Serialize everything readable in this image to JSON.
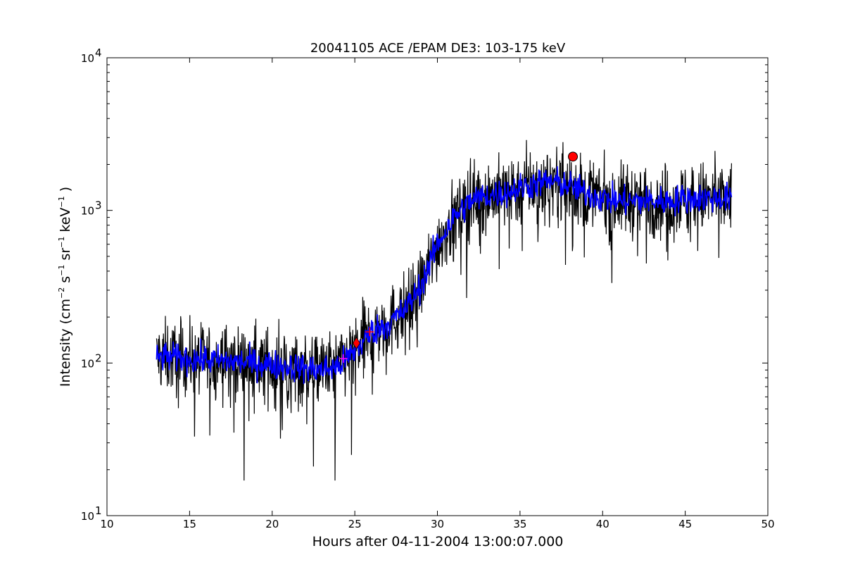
{
  "chart_data": {
    "type": "line",
    "title": "20041105 ACE /EPAM DE3: 103-175 keV",
    "xlabel": "Hours after 04-11-2004 13:00:07.000",
    "ylabel": "Intensity (cm-2 s-1 sr-1 keV-1)",
    "ylabel_parts": {
      "prefix": "Intensity (cm",
      "exp1": "−2",
      "s": "s",
      "exp2": "−1",
      "sr": "sr",
      "exp3": "−1",
      "kev": "keV",
      "exp4": "−1",
      "suffix": ")"
    },
    "xlim": [
      10,
      50
    ],
    "ylim": [
      10,
      10000
    ],
    "yscale": "log",
    "grid": false,
    "x_ticks": [
      10,
      15,
      20,
      25,
      30,
      35,
      40,
      45,
      50
    ],
    "x_tick_labels": [
      "10",
      "15",
      "20",
      "25",
      "30",
      "35",
      "40",
      "45",
      "50"
    ],
    "y_ticks": [
      10,
      100,
      1000,
      10000
    ],
    "y_tick_labels": [
      {
        "base": "10",
        "exp": "1"
      },
      {
        "base": "10",
        "exp": "2"
      },
      {
        "base": "10",
        "exp": "3"
      },
      {
        "base": "10",
        "exp": "4"
      }
    ],
    "series": [
      {
        "color": "#000000",
        "style": "noisy-raw",
        "x_range": [
          13.0,
          47.8
        ],
        "trend": [
          [
            13,
            110
          ],
          [
            16,
            105
          ],
          [
            19,
            100
          ],
          [
            21,
            95
          ],
          [
            23,
            90
          ],
          [
            24,
            95
          ],
          [
            25,
            120
          ],
          [
            26,
            160
          ],
          [
            27,
            180
          ],
          [
            28,
            220
          ],
          [
            29,
            320
          ],
          [
            30,
            600
          ],
          [
            31,
            900
          ],
          [
            32,
            1150
          ],
          [
            33,
            1250
          ],
          [
            34,
            1300
          ],
          [
            35,
            1400
          ],
          [
            36,
            1500
          ],
          [
            37,
            1550
          ],
          [
            38,
            1450
          ],
          [
            39,
            1300
          ],
          [
            40,
            1200
          ],
          [
            41,
            1150
          ],
          [
            42,
            1150
          ],
          [
            43,
            1150
          ],
          [
            44,
            1150
          ],
          [
            45,
            1200
          ],
          [
            46,
            1200
          ],
          [
            47,
            1200
          ],
          [
            47.8,
            1200
          ]
        ],
        "peak_spikes": [
          [
            37.6,
            2800
          ],
          [
            40.1,
            2500
          ],
          [
            46.8,
            2450
          ],
          [
            32.0,
            2200
          ],
          [
            34.5,
            2100
          ],
          [
            41.5,
            2000
          ]
        ],
        "dip_spikes": [
          [
            18.3,
            17
          ],
          [
            23.8,
            17
          ],
          [
            22.5,
            21
          ],
          [
            24.8,
            25
          ],
          [
            20.5,
            32
          ],
          [
            15.3,
            33
          ]
        ]
      },
      {
        "color": "#0000ff",
        "style": "smoothed",
        "x_range": [
          13.0,
          47.8
        ],
        "trend": [
          [
            13,
            110
          ],
          [
            16,
            105
          ],
          [
            19,
            100
          ],
          [
            21,
            95
          ],
          [
            23,
            90
          ],
          [
            24,
            95
          ],
          [
            25,
            120
          ],
          [
            26,
            160
          ],
          [
            27,
            180
          ],
          [
            28,
            220
          ],
          [
            29,
            320
          ],
          [
            30,
            600
          ],
          [
            31,
            900
          ],
          [
            32,
            1150
          ],
          [
            33,
            1250
          ],
          [
            34,
            1300
          ],
          [
            35,
            1400
          ],
          [
            36,
            1500
          ],
          [
            37,
            1550
          ],
          [
            38,
            1450
          ],
          [
            39,
            1300
          ],
          [
            40,
            1200
          ],
          [
            41,
            1150
          ],
          [
            42,
            1150
          ],
          [
            43,
            1150
          ],
          [
            44,
            1150
          ],
          [
            45,
            1200
          ],
          [
            46,
            1200
          ],
          [
            47,
            1200
          ],
          [
            47.8,
            1200
          ]
        ]
      }
    ],
    "markers": [
      {
        "shape": "circle",
        "color": "#ff0000",
        "x": 38.2,
        "y": 2250
      },
      {
        "shape": "diamond",
        "color": "#ff0000",
        "x": 25.1,
        "y": 135
      },
      {
        "shape": "plus",
        "color": "#ff0000",
        "x": 25.9,
        "y": 160
      },
      {
        "shape": "plus",
        "color": "#ff00ff",
        "x": 24.3,
        "y": 107
      }
    ]
  }
}
